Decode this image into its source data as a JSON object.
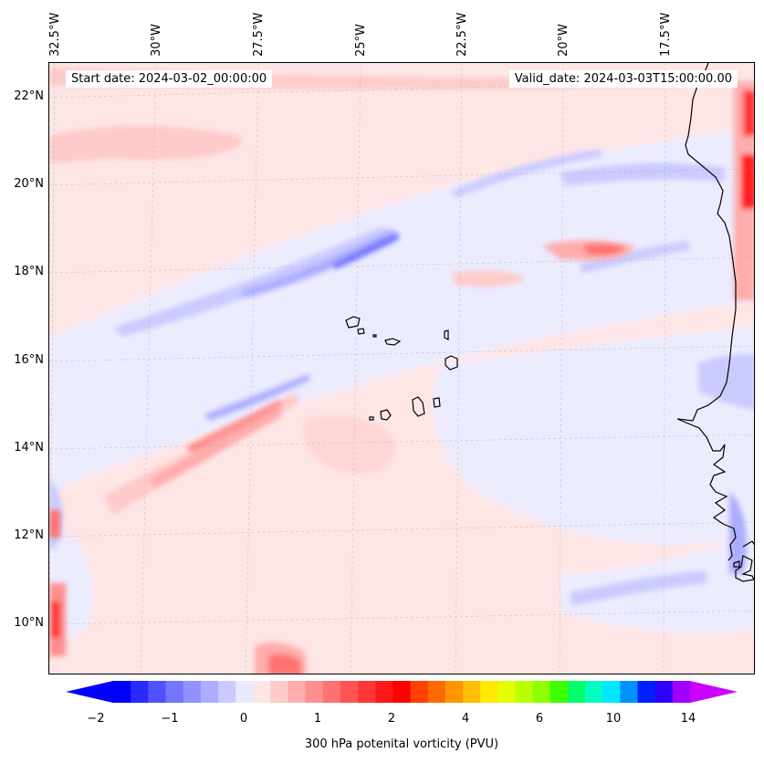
{
  "map": {
    "start_date": "Start date: 2024-03-02_00:00:00",
    "valid_date": "Valid_date: 2024-03-03T15:00:00.00",
    "latitude_labels": [
      "22°N",
      "20°N",
      "18°N",
      "16°N",
      "14°N",
      "12°N",
      "10°N"
    ],
    "longitude_labels": [
      "32.5°W",
      "30°W",
      "27.5°W",
      "25°W",
      "22.5°W",
      "20°W",
      "17.5°W"
    ],
    "coastline_color": "#000000",
    "background_shading_color": "#ffe6e6"
  },
  "colorbar": {
    "label": "300 hPa potenital vorticity (PVU)",
    "tick_labels": [
      "−2",
      "−1",
      "0",
      "1",
      "2",
      "4",
      "6",
      "10",
      "14"
    ],
    "colors": [
      "#0000ff",
      "#2a2aff",
      "#5050ff",
      "#7474ff",
      "#9191ff",
      "#adadff",
      "#cacaff",
      "#e9e9ff",
      "#ffe6e6",
      "#ffcaca",
      "#ffacac",
      "#ff8e8e",
      "#ff7272",
      "#ff5454",
      "#ff3636",
      "#ff1a1a",
      "#ff0000",
      "#ff4000",
      "#ff6a00",
      "#ff9600",
      "#ffbf00",
      "#ffea00",
      "#e4ff00",
      "#b8ff00",
      "#8cff00",
      "#3cff00",
      "#00ff6a",
      "#00ffc0",
      "#00e8ff",
      "#0090ff",
      "#0020ff",
      "#3000ff",
      "#a000ff"
    ],
    "extend_min_color": "#0000ff",
    "extend_max_color": "#cc00ff"
  }
}
